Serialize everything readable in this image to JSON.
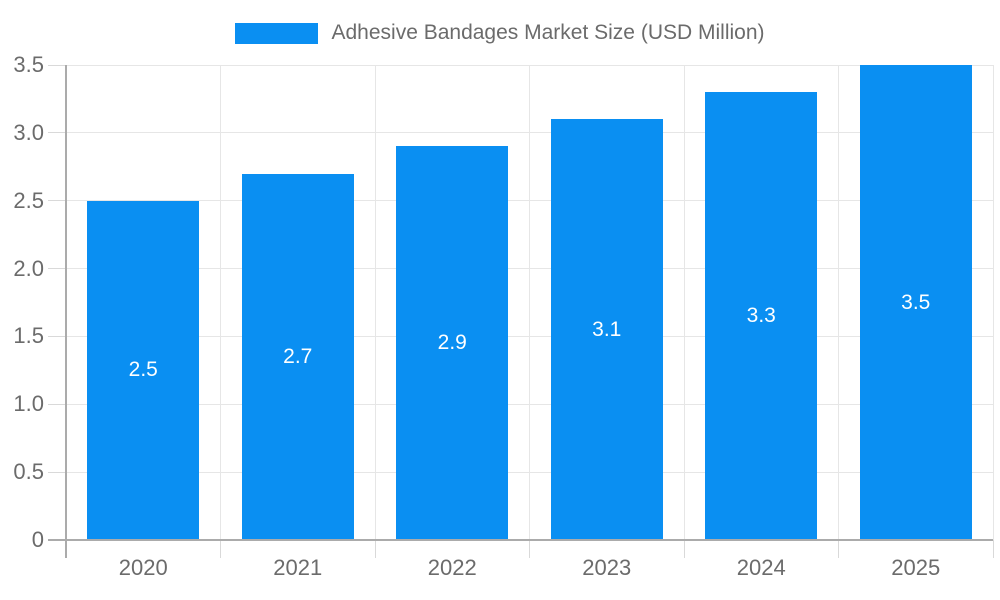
{
  "chart_data": {
    "type": "bar",
    "title": "Adhesive Bandages Market Size (USD Million)",
    "legend": {
      "label": "Adhesive Bandages Market Size (USD Million)",
      "position": "top-center"
    },
    "categories": [
      "2020",
      "2021",
      "2022",
      "2023",
      "2024",
      "2025"
    ],
    "series": [
      {
        "name": "Adhesive Bandages Market Size (USD Million)",
        "values": [
          2.5,
          2.7,
          2.9,
          3.1,
          3.3,
          3.5
        ]
      }
    ],
    "bar_value_labels": [
      "2.5",
      "2.7",
      "2.9",
      "3.1",
      "3.3",
      "3.5"
    ],
    "xlabel": "",
    "ylabel": "",
    "ylim": [
      0,
      3.5
    ],
    "yticks": [
      0,
      0.5,
      1,
      1.5,
      2,
      2.5,
      3,
      3.5
    ],
    "ytick_labels": [
      "0",
      "0.5",
      "1.0",
      "1.5",
      "2.0",
      "2.5",
      "3.0",
      "3.5"
    ],
    "grid": true,
    "colors": {
      "bar": "#0a8ff2",
      "gridline": "#e6e6e6",
      "tick": "#d9d9d9",
      "axis_line": "#ababab",
      "text": "#6b6b6b",
      "bar_label": "#ffffff",
      "background": "#ffffff"
    }
  }
}
